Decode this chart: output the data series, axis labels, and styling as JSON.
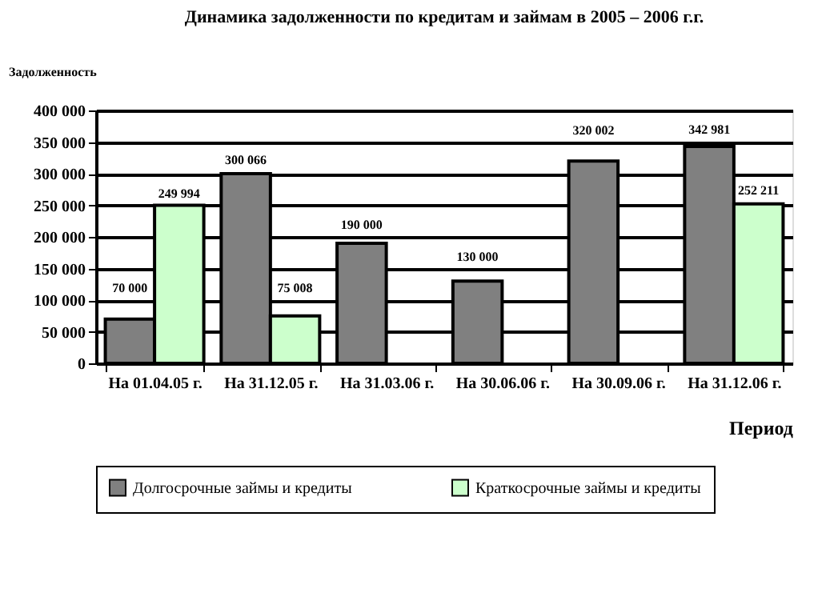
{
  "chart_data": {
    "type": "bar",
    "title": "Динамика задолженности по кредитам и займам в 2005 – 2006 г.г.",
    "xlabel": "Период",
    "ylabel": "Задолженность",
    "categories": [
      "На 01.04.05 г.",
      "На 31.12.05 г.",
      "На 31.03.06 г.",
      "На 30.06.06 г.",
      "На 30.09.06 г.",
      "На 31.12.06 г."
    ],
    "series": [
      {
        "name": "Долгосрочные займы и кредиты",
        "color": "#808080",
        "values": [
          70000,
          300066,
          190000,
          130000,
          320002,
          342981
        ],
        "value_labels": [
          "70 000",
          "300 066",
          "190 000",
          "130 000",
          "320 002",
          "342 981"
        ]
      },
      {
        "name": "Краткосрочные займы и кредиты",
        "color": "#ccffcc",
        "values": [
          249994,
          75008,
          null,
          null,
          null,
          252211
        ],
        "value_labels": [
          "249 994",
          "75 008",
          null,
          null,
          null,
          "252 211"
        ]
      }
    ],
    "ylim": [
      0,
      400000
    ],
    "yticks": [
      {
        "value": 0,
        "label": "0"
      },
      {
        "value": 50000,
        "label": "50 000"
      },
      {
        "value": 100000,
        "label": "100 000"
      },
      {
        "value": 150000,
        "label": "150 000"
      },
      {
        "value": 200000,
        "label": "200 000"
      },
      {
        "value": 250000,
        "label": "250 000"
      },
      {
        "value": 300000,
        "label": "300 000"
      },
      {
        "value": 350000,
        "label": "350 000"
      },
      {
        "value": 400000,
        "label": "400 000"
      }
    ],
    "grid": "y",
    "legend": "bottom"
  }
}
